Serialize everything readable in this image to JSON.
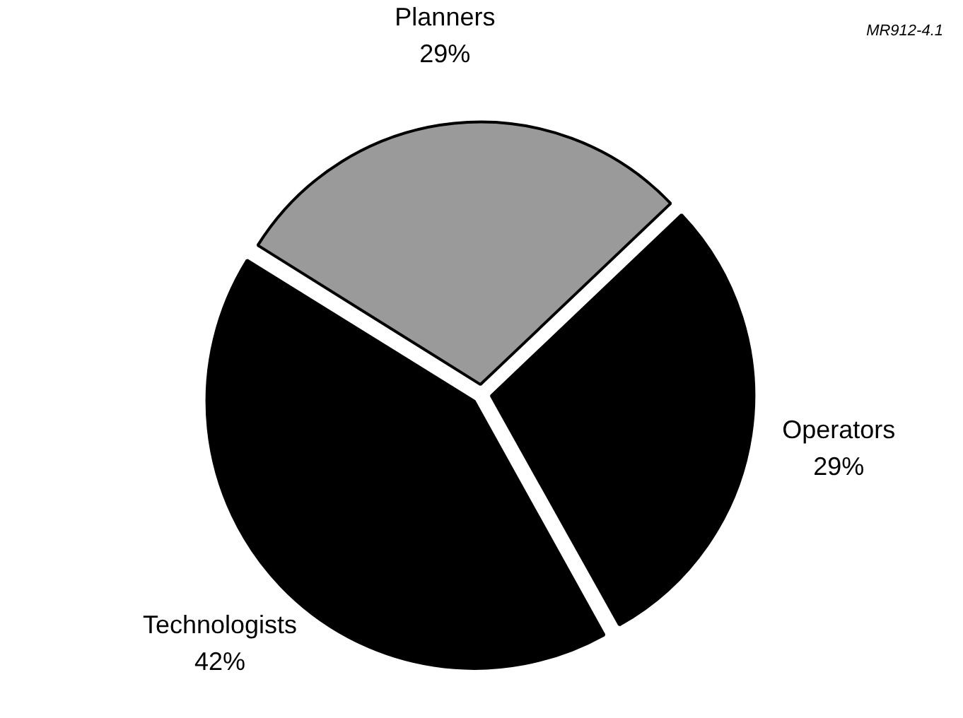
{
  "chart_data": {
    "type": "pie",
    "categories": [
      "Planners",
      "Operators",
      "Technologists"
    ],
    "values": [
      29,
      29,
      42
    ],
    "value_labels": [
      "29%",
      "29%",
      "42%"
    ],
    "colors": [
      "#9a9a9a",
      "#000000",
      "#000000"
    ],
    "annotations": [
      "MR912-4.1"
    ],
    "legend": false
  }
}
